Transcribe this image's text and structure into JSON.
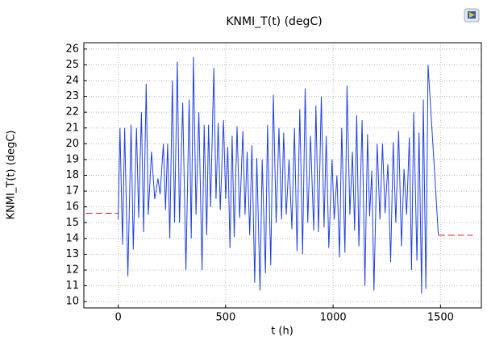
{
  "chart_data": {
    "type": "line",
    "title": "KNMI_T(t) (degC)",
    "x_label": "t (h)",
    "y_label": "KNMI_T(t) (degC)",
    "xlim": [
      -160,
      1690
    ],
    "ylim": [
      9.6,
      26.4
    ],
    "xticks": [
      0,
      500,
      1000,
      1500
    ],
    "yticks": [
      10,
      11,
      12,
      13,
      14,
      15,
      16,
      17,
      18,
      19,
      20,
      21,
      22,
      23,
      24,
      25,
      26
    ],
    "grid": true,
    "series": [
      {
        "color": "#2040e0",
        "dash": false,
        "x": [
          0,
          8,
          20,
          30,
          45,
          60,
          70,
          85,
          95,
          108,
          118,
          130,
          140,
          155,
          170,
          185,
          195,
          210,
          220,
          230,
          240,
          252,
          262,
          275,
          285,
          300,
          315,
          330,
          340,
          350,
          362,
          375,
          390,
          400,
          412,
          420,
          430,
          445,
          455,
          465,
          475,
          490,
          500,
          510,
          520,
          530,
          540,
          553,
          565,
          580,
          590,
          600,
          612,
          622,
          635,
          645,
          660,
          670,
          685,
          695,
          710,
          722,
          735,
          748,
          760,
          770,
          782,
          795,
          808,
          820,
          832,
          845,
          858,
          870,
          882,
          895,
          910,
          920,
          932,
          945,
          958,
          968,
          980,
          995,
          1005,
          1018,
          1030,
          1040,
          1055,
          1065,
          1078,
          1090,
          1100,
          1110,
          1120,
          1135,
          1148,
          1160,
          1170,
          1180,
          1190,
          1205,
          1218,
          1230,
          1242,
          1255,
          1268,
          1280,
          1292,
          1305,
          1318,
          1330,
          1342,
          1355,
          1365,
          1375,
          1390,
          1400,
          1412,
          1420,
          1432,
          1442,
          1490
        ],
        "values": [
          15.2,
          21,
          13.6,
          21,
          11.6,
          21.2,
          13.3,
          21,
          15.3,
          22,
          14.4,
          23.8,
          15.5,
          19.5,
          16.5,
          17.8,
          16.8,
          20,
          15.8,
          20,
          14,
          24,
          15,
          25.2,
          15,
          22.6,
          12,
          22.8,
          14,
          25.5,
          15.5,
          22,
          12,
          21.2,
          14.2,
          21.2,
          16,
          24.8,
          16.5,
          21.3,
          15.8,
          21.5,
          16.5,
          19.8,
          13.4,
          20.5,
          14.1,
          21.1,
          15.3,
          20.8,
          15.5,
          19.5,
          14.2,
          19.9,
          11.2,
          19.1,
          10.7,
          19,
          11.8,
          21.2,
          12.3,
          23.1,
          15,
          21,
          15.2,
          20.7,
          15.5,
          19,
          14.6,
          21,
          13.2,
          22.2,
          13,
          23.5,
          15,
          20.5,
          14.5,
          22.4,
          14.4,
          23,
          14.7,
          20.5,
          13.4,
          19,
          15.2,
          18,
          12.8,
          21,
          13.1,
          23.7,
          15.5,
          19.5,
          14.5,
          21.8,
          13.5,
          21.5,
          11,
          20.6,
          15.4,
          18.3,
          10.7,
          20,
          15.2,
          20,
          15.6,
          18.7,
          12.5,
          20.1,
          15,
          20.8,
          13.5,
          18.4,
          15.5,
          20.4,
          12,
          22,
          12.6,
          20.7,
          10.5,
          22.8,
          10.8,
          25,
          14.2
        ]
      },
      {
        "color": "#e01010",
        "dash": true,
        "x": [
          -150,
          0
        ],
        "values": [
          15.6,
          15.6
        ]
      },
      {
        "color": "#e01010",
        "dash": true,
        "x": [
          1490,
          1650
        ],
        "values": [
          14.2,
          14.2
        ]
      }
    ]
  }
}
